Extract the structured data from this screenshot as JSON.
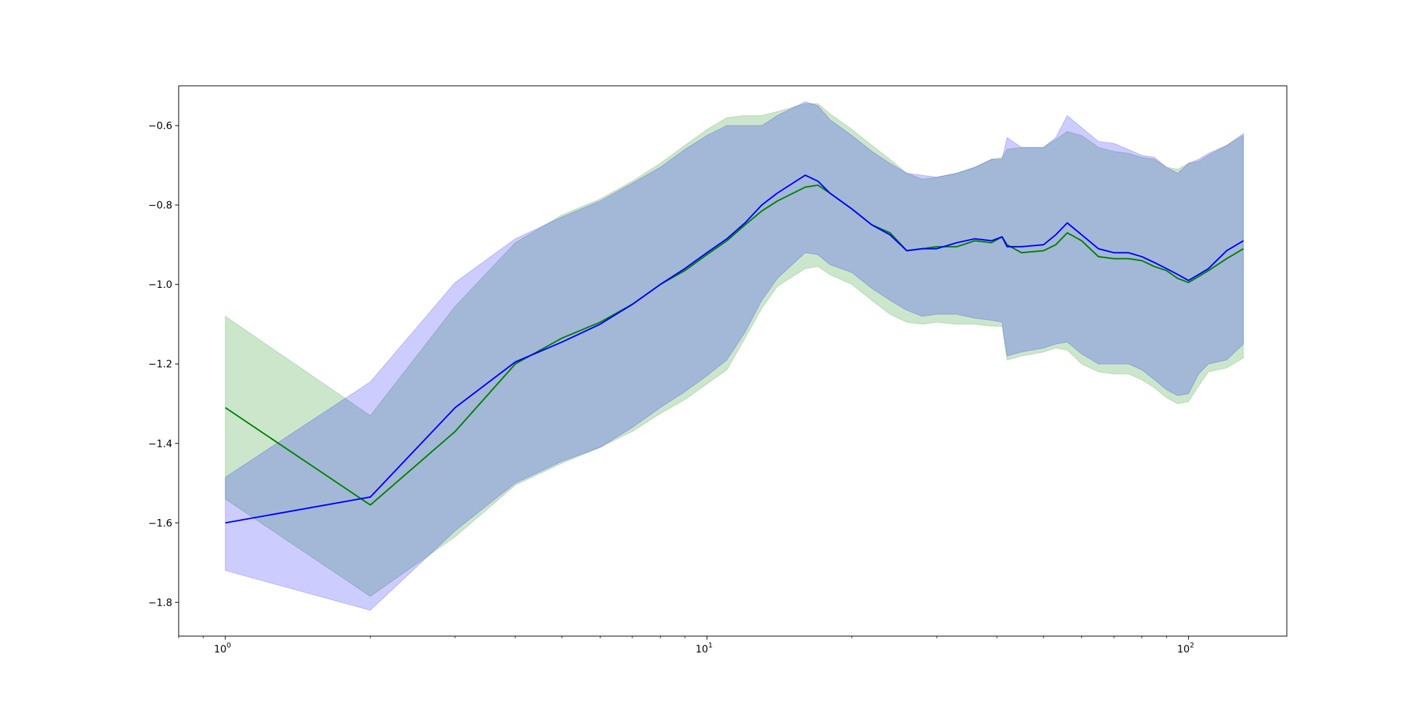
{
  "chart_data": {
    "type": "line",
    "title": "",
    "xlabel": "",
    "ylabel": "",
    "xscale": "log",
    "xlim": [
      0.8,
      160
    ],
    "ylim": [
      -1.885,
      -0.5
    ],
    "grid": false,
    "legend": "none",
    "x_ticks": [
      {
        "value": 1,
        "base": "10",
        "exp": "0"
      },
      {
        "value": 10,
        "base": "10",
        "exp": "1"
      },
      {
        "value": 100,
        "base": "10",
        "exp": "2"
      }
    ],
    "y_ticks": [
      {
        "value": -1.8,
        "label": "−1.8"
      },
      {
        "value": -1.6,
        "label": "−1.6"
      },
      {
        "value": -1.4,
        "label": "−1.4"
      },
      {
        "value": -1.2,
        "label": "−1.2"
      },
      {
        "value": -1.0,
        "label": "−1.0"
      },
      {
        "value": -0.8,
        "label": "−0.8"
      },
      {
        "value": -0.6,
        "label": "−0.6"
      }
    ],
    "x": [
      1,
      2,
      3,
      4,
      5,
      6,
      7,
      8,
      9,
      10,
      11,
      12,
      13,
      14,
      16,
      17,
      18,
      20,
      22,
      24,
      26,
      28,
      30,
      33,
      36,
      39,
      41,
      42,
      45,
      50,
      53,
      56,
      60,
      65,
      70,
      75,
      80,
      85,
      90,
      95,
      100,
      105,
      110,
      120,
      130
    ],
    "series": [
      {
        "color": "#008000",
        "band_color": "#008000",
        "band_opacity": 0.2,
        "mean": [
          -1.31,
          -1.555,
          -1.37,
          -1.2,
          -1.135,
          -1.095,
          -1.05,
          -1.0,
          -0.965,
          -0.925,
          -0.89,
          -0.85,
          -0.815,
          -0.79,
          -0.755,
          -0.75,
          -0.77,
          -0.81,
          -0.85,
          -0.87,
          -0.915,
          -0.91,
          -0.905,
          -0.905,
          -0.89,
          -0.895,
          -0.88,
          -0.9,
          -0.92,
          -0.915,
          -0.9,
          -0.87,
          -0.89,
          -0.93,
          -0.935,
          -0.935,
          -0.94,
          -0.955,
          -0.965,
          -0.985,
          -0.995,
          -0.98,
          -0.965,
          -0.935,
          -0.91
        ],
        "upper": [
          -1.08,
          -1.33,
          -1.055,
          -0.895,
          -0.825,
          -0.785,
          -0.74,
          -0.695,
          -0.65,
          -0.61,
          -0.58,
          -0.575,
          -0.575,
          -0.565,
          -0.545,
          -0.545,
          -0.57,
          -0.61,
          -0.65,
          -0.685,
          -0.72,
          -0.735,
          -0.73,
          -0.72,
          -0.705,
          -0.685,
          -0.68,
          -0.66,
          -0.655,
          -0.655,
          -0.635,
          -0.615,
          -0.625,
          -0.655,
          -0.665,
          -0.67,
          -0.68,
          -0.685,
          -0.705,
          -0.71,
          -0.695,
          -0.69,
          -0.675,
          -0.65,
          -0.625
        ],
        "lower": [
          -1.54,
          -1.785,
          -1.635,
          -1.505,
          -1.45,
          -1.41,
          -1.37,
          -1.325,
          -1.29,
          -1.25,
          -1.215,
          -1.135,
          -1.06,
          -1.005,
          -0.96,
          -0.955,
          -0.975,
          -1.0,
          -1.04,
          -1.075,
          -1.095,
          -1.1,
          -1.095,
          -1.1,
          -1.1,
          -1.105,
          -1.105,
          -1.19,
          -1.18,
          -1.17,
          -1.16,
          -1.165,
          -1.2,
          -1.22,
          -1.225,
          -1.225,
          -1.24,
          -1.26,
          -1.285,
          -1.3,
          -1.295,
          -1.255,
          -1.22,
          -1.21,
          -1.185
        ]
      },
      {
        "color": "#0000ff",
        "band_color": "#0000ff",
        "band_opacity": 0.2,
        "mean": [
          -1.6,
          -1.535,
          -1.31,
          -1.195,
          -1.145,
          -1.1,
          -1.05,
          -1.0,
          -0.96,
          -0.92,
          -0.885,
          -0.845,
          -0.8,
          -0.77,
          -0.725,
          -0.74,
          -0.77,
          -0.81,
          -0.85,
          -0.875,
          -0.915,
          -0.91,
          -0.91,
          -0.895,
          -0.885,
          -0.89,
          -0.88,
          -0.905,
          -0.905,
          -0.9,
          -0.875,
          -0.845,
          -0.875,
          -0.91,
          -0.92,
          -0.92,
          -0.93,
          -0.945,
          -0.96,
          -0.975,
          -0.99,
          -0.975,
          -0.96,
          -0.915,
          -0.89
        ],
        "upper": [
          -1.485,
          -1.245,
          -0.995,
          -0.885,
          -0.83,
          -0.79,
          -0.745,
          -0.705,
          -0.66,
          -0.625,
          -0.6,
          -0.6,
          -0.6,
          -0.575,
          -0.54,
          -0.55,
          -0.585,
          -0.625,
          -0.665,
          -0.695,
          -0.72,
          -0.725,
          -0.73,
          -0.72,
          -0.705,
          -0.685,
          -0.685,
          -0.63,
          -0.655,
          -0.655,
          -0.63,
          -0.575,
          -0.605,
          -0.64,
          -0.645,
          -0.66,
          -0.675,
          -0.68,
          -0.705,
          -0.72,
          -0.695,
          -0.685,
          -0.67,
          -0.65,
          -0.62
        ],
        "lower": [
          -1.72,
          -1.82,
          -1.62,
          -1.5,
          -1.445,
          -1.41,
          -1.36,
          -1.31,
          -1.27,
          -1.23,
          -1.19,
          -1.12,
          -1.04,
          -0.985,
          -0.92,
          -0.925,
          -0.95,
          -0.97,
          -1.01,
          -1.04,
          -1.065,
          -1.08,
          -1.075,
          -1.075,
          -1.085,
          -1.09,
          -1.095,
          -1.18,
          -1.17,
          -1.16,
          -1.15,
          -1.145,
          -1.175,
          -1.2,
          -1.2,
          -1.2,
          -1.215,
          -1.24,
          -1.265,
          -1.28,
          -1.275,
          -1.225,
          -1.2,
          -1.19,
          -1.15
        ]
      }
    ]
  }
}
